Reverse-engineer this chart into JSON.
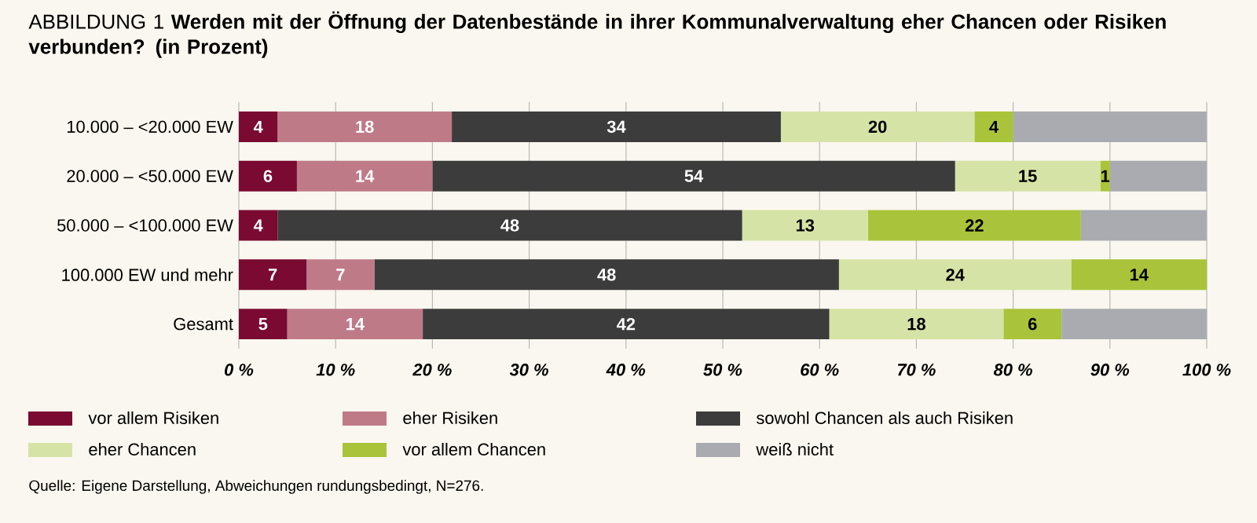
{
  "chart_data": {
    "type": "bar",
    "orientation": "horizontal",
    "stacked": true,
    "title": "ABBILDUNG 1 **Werden mit der Öffnung der Datenbestände in ihrer Kommunalverwaltung eher Chancen oder Risiken verbunden? (in Prozent)**",
    "categories": [
      "10.000 – <20.000 EW",
      "20.000 – <50.000 EW",
      "50.000 – <100.000 EW",
      "100.000 EW und mehr",
      "Gesamt"
    ],
    "series": [
      {
        "name": "vor allem Risiken",
        "color": "#7a0a32",
        "values": [
          4,
          6,
          4,
          7,
          5
        ],
        "value_labels": [
          "4",
          "6",
          "4",
          "7",
          "5"
        ]
      },
      {
        "name": "eher Risiken",
        "color": "#bf7a88",
        "values": [
          18,
          14,
          0,
          7,
          14
        ],
        "value_labels": [
          "18",
          "14",
          null,
          "7",
          "14"
        ]
      },
      {
        "name": "sowohl Chancen als auch Risiken",
        "color": "#3c3c3c",
        "values": [
          34,
          54,
          48,
          48,
          42
        ],
        "value_labels": [
          "34",
          "54",
          "48",
          "48",
          "42"
        ]
      },
      {
        "name": "eher Chancen",
        "color": "#d6e3a6",
        "values": [
          20,
          15,
          13,
          24,
          18
        ],
        "value_labels": [
          "20",
          "15",
          "13",
          "24",
          "18"
        ]
      },
      {
        "name": "vor allem Chancen",
        "color": "#a9c43a",
        "values": [
          4,
          1,
          22,
          14,
          6
        ],
        "value_labels": [
          "4",
          "1",
          "22",
          "14",
          "6"
        ]
      },
      {
        "name": "weiß nicht",
        "color": "#a9abb0",
        "values": [
          20,
          10,
          13,
          0,
          15
        ],
        "value_labels": [
          null,
          null,
          null,
          null,
          null
        ]
      }
    ],
    "xlim": [
      0,
      100
    ],
    "xticks": [
      {
        "value": 0,
        "label": "0 %"
      },
      {
        "value": 10,
        "label": "10 %"
      },
      {
        "value": 20,
        "label": "20 %"
      },
      {
        "value": 30,
        "label": "30 %"
      },
      {
        "value": 40,
        "label": "40 %"
      },
      {
        "value": 50,
        "label": "50 %"
      },
      {
        "value": 60,
        "label": "60 %"
      },
      {
        "value": 70,
        "label": "70 %"
      },
      {
        "value": 80,
        "label": "80 %"
      },
      {
        "value": 90,
        "label": "90 %"
      },
      {
        "value": 100,
        "label": "100 %"
      }
    ],
    "grid": "x",
    "legend": "bottom",
    "annotations": [
      "Quelle: Eigene Darstellung, Abweichungen rundungsbedingt, N=276."
    ]
  }
}
